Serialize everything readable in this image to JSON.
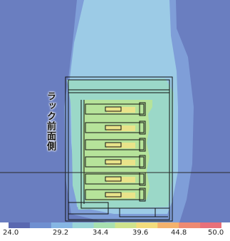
{
  "colors": {
    "background": "#6a7ec0",
    "level_1": "#7f9ed8",
    "level_2": "#9ccbe6",
    "level_3": "#9bd8c8",
    "level_4": "#b6e39a",
    "level_5": "#e9e38a",
    "hot": "#f0c070",
    "outline": "#111111",
    "reference_line": "#2a2a2a"
  },
  "side_label": "ラック前面側",
  "legend": {
    "scale": [
      "24.0",
      "29.2",
      "34.4",
      "39.6",
      "44.8",
      "50.0"
    ],
    "colors": [
      "#5a68b0",
      "#6f8fd0",
      "#86b6e4",
      "#9ad4d8",
      "#a8e0b0",
      "#cfe38c",
      "#f2dc7c",
      "#f4b26c",
      "#ee8a72",
      "#e8707a"
    ]
  }
}
